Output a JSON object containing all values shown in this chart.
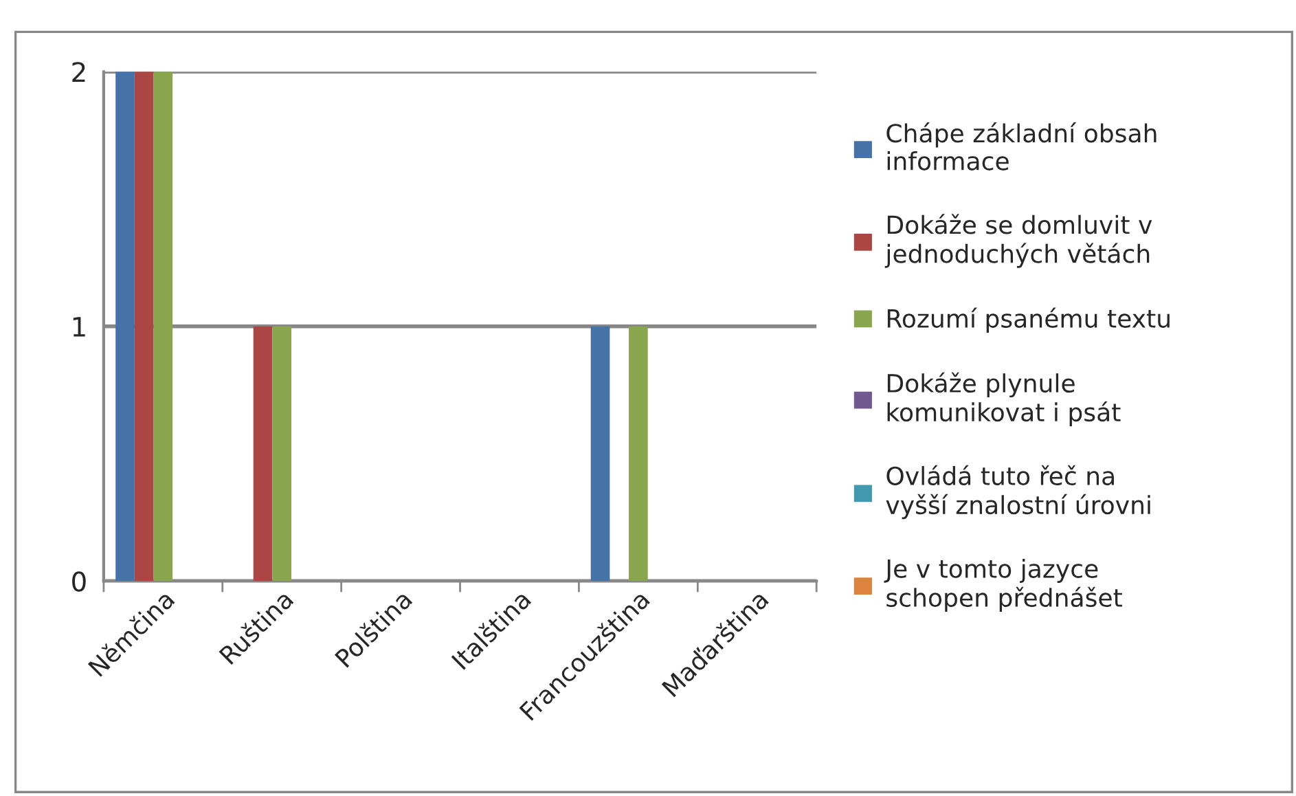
{
  "chart_data": {
    "type": "bar",
    "categories": [
      "Němčina",
      "Ruština",
      "Polština",
      "Italština",
      "Francouzština",
      "Maďarština"
    ],
    "series": [
      {
        "name": "Chápe základní obsah informace",
        "color": "#4572a7",
        "values": [
          2,
          0,
          0,
          0,
          1,
          0
        ]
      },
      {
        "name": "Dokáže se domluvit v jednoduchých větách",
        "color": "#aa4643",
        "values": [
          2,
          1,
          0,
          0,
          0,
          0
        ]
      },
      {
        "name": "Rozumí psanému textu",
        "color": "#89a54e",
        "values": [
          2,
          1,
          0,
          0,
          1,
          0
        ]
      },
      {
        "name": "Dokáže plynule komunikovat i psát",
        "color": "#71588f",
        "values": [
          0,
          0,
          0,
          0,
          0,
          0
        ]
      },
      {
        "name": "Ovládá tuto řeč na vyšší znalostní úrovni",
        "color": "#4198af",
        "values": [
          0,
          0,
          0,
          0,
          0,
          0
        ]
      },
      {
        "name": "Je v tomto jazyce schopen přednášet",
        "color": "#db843d",
        "values": [
          0,
          0,
          0,
          0,
          0,
          0
        ]
      }
    ],
    "ylim": [
      0,
      2
    ],
    "yticks": [
      0,
      1,
      2
    ],
    "grid": "y",
    "legend": "right"
  }
}
